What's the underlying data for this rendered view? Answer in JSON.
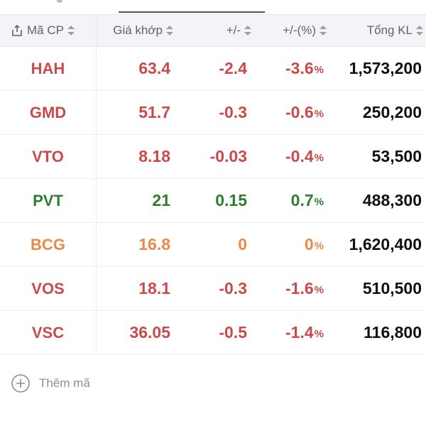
{
  "colors": {
    "down": "#c94a4a",
    "up": "#2e7d32",
    "reference": "#e8894a",
    "volume": "#111111"
  },
  "header": {
    "columns": [
      "Mã CP",
      "Giá khớp",
      "+/-",
      "+/-(%)",
      "Tổng KL"
    ],
    "share_icon": "share-icon",
    "sort_icon": "sort-icon"
  },
  "rows": [
    {
      "symbol": "HAH",
      "price": "63.4",
      "change": "-2.4",
      "pct": "-3.6",
      "volume": "1,573,200",
      "trend": "down"
    },
    {
      "symbol": "GMD",
      "price": "51.7",
      "change": "-0.3",
      "pct": "-0.6",
      "volume": "250,200",
      "trend": "down"
    },
    {
      "symbol": "VTO",
      "price": "8.18",
      "change": "-0.03",
      "pct": "-0.4",
      "volume": "53,500",
      "trend": "down"
    },
    {
      "symbol": "PVT",
      "price": "21",
      "change": "0.15",
      "pct": "0.7",
      "volume": "488,300",
      "trend": "up"
    },
    {
      "symbol": "BCG",
      "price": "16.8",
      "change": "0",
      "pct": "0",
      "volume": "1,620,400",
      "trend": "reference"
    },
    {
      "symbol": "VOS",
      "price": "18.1",
      "change": "-0.3",
      "pct": "-1.6",
      "volume": "510,500",
      "trend": "down"
    },
    {
      "symbol": "VSC",
      "price": "36.05",
      "change": "-0.5",
      "pct": "-1.4",
      "volume": "116,800",
      "trend": "down"
    }
  ],
  "pct_unit": "%",
  "add_symbol": {
    "label": "Thêm mã",
    "icon": "plus-circle-icon"
  }
}
